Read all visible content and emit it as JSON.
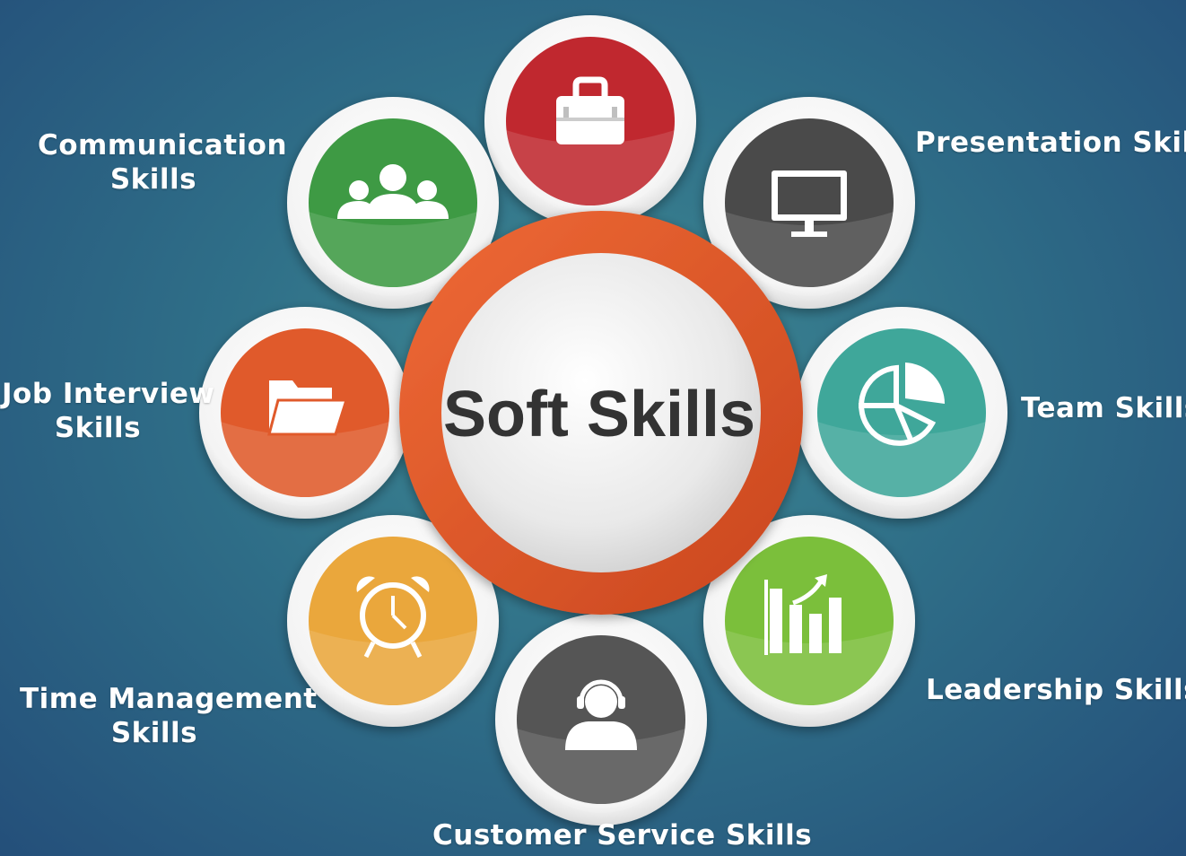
{
  "center": {
    "title": "Soft Skills",
    "ring_color": "#e05a2b",
    "disc_color": "#eeeeee",
    "text_color": "#333333"
  },
  "skills": [
    {
      "id": "top",
      "icon": "briefcase-icon",
      "color": "#c0282f",
      "label_lines": []
    },
    {
      "id": "presentation",
      "icon": "monitor-icon",
      "color": "#4a4a4a",
      "label_lines": [
        "Presentation Skills"
      ]
    },
    {
      "id": "team",
      "icon": "pie-chart-icon",
      "color": "#3fa79a",
      "label_lines": [
        "Team Skills"
      ]
    },
    {
      "id": "leadership",
      "icon": "bar-chart-growth-icon",
      "color": "#7bbf3b",
      "label_lines": [
        "Leadership Skills"
      ]
    },
    {
      "id": "customer-service",
      "icon": "headset-user-icon",
      "color": "#555555",
      "label_lines": [
        "Customer Service Skills"
      ]
    },
    {
      "id": "time-management",
      "icon": "alarm-clock-icon",
      "color": "#eaa73c",
      "label_lines": [
        "Time Management",
        "Skills"
      ]
    },
    {
      "id": "job-interview",
      "icon": "folder-icon",
      "color": "#e05a2b",
      "label_lines": [
        "Job Interview",
        "Skills"
      ]
    },
    {
      "id": "communication",
      "icon": "people-group-icon",
      "color": "#3e9a44",
      "label_lines": [
        "Communication",
        "Skills"
      ]
    }
  ]
}
